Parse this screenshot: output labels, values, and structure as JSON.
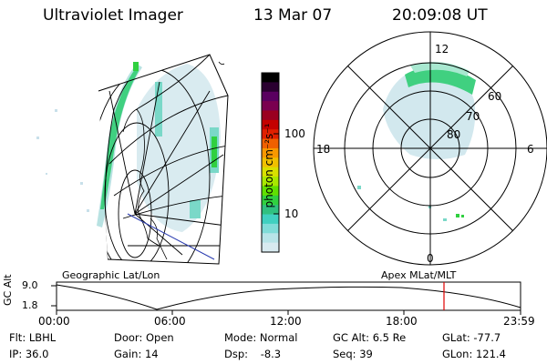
{
  "header": {
    "instrument": "Ultraviolet Imager",
    "date": "13 Mar 07",
    "time": "20:09:08 UT"
  },
  "colorbar": {
    "unit_label": "photon cm⁻²s⁻¹",
    "ticks": [
      "100",
      "10"
    ],
    "colors": [
      "#000000",
      "#2a0030",
      "#5a0060",
      "#7a0050",
      "#9a0020",
      "#c40000",
      "#e02000",
      "#f06000",
      "#f89800",
      "#f0c000",
      "#d8e000",
      "#a8e800",
      "#60e000",
      "#30d040",
      "#30c080",
      "#40d0c0",
      "#80dcd8",
      "#b8e4e8",
      "#d8eaf0"
    ]
  },
  "left_panel": {
    "label": "Geographic Lat/Lon"
  },
  "right_panel": {
    "label": "Apex MLat/MLT",
    "mlt_labels": {
      "top": "12",
      "left": "18",
      "right": "6",
      "bottom": "0"
    },
    "lat_labels": [
      "60",
      "70",
      "80"
    ]
  },
  "timeline": {
    "y_axis_label": "GC Alt",
    "y_ticks": [
      "9.0",
      "1.8"
    ],
    "x_ticks": [
      "00:00",
      "06:00",
      "12:00",
      "18:00",
      "23:59"
    ],
    "marker_time": "20:09",
    "marker_color": "#e00000"
  },
  "status": {
    "row1": [
      {
        "label": "Flt:",
        "value": "LBHL"
      },
      {
        "label": "Door:",
        "value": "Open"
      },
      {
        "label": "Mode:",
        "value": "Normal"
      },
      {
        "label": "GC Alt:",
        "value": "6.5 Re"
      },
      {
        "label": "GLat:",
        "value": "-77.7"
      }
    ],
    "row2": [
      {
        "label": "IP:",
        "value": "36.0"
      },
      {
        "label": "Gain:",
        "value": "14"
      },
      {
        "label": "Dsp:",
        "value": "-8.3"
      },
      {
        "label": "Seq:",
        "value": "39"
      },
      {
        "label": "GLon:",
        "value": "121.4"
      }
    ]
  }
}
